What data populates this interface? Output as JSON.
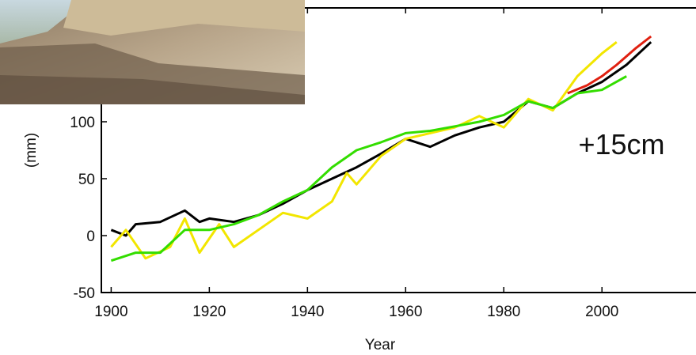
{
  "chart_data": {
    "type": "line",
    "x_label": "Year",
    "y_label": "(mm)",
    "annotation": "+15cm",
    "xlim": [
      1898,
      2019
    ],
    "ylim": [
      -50,
      200
    ],
    "xticks": [
      1900,
      1920,
      1940,
      1960,
      1980,
      2000
    ],
    "yticks": [
      -50,
      0,
      50,
      100
    ],
    "series": [
      {
        "color": "#000000",
        "x": [
          1900,
          1903,
          1905,
          1910,
          1915,
          1918,
          1920,
          1925,
          1930,
          1935,
          1940,
          1945,
          1950,
          1955,
          1960,
          1965,
          1970,
          1975,
          1980,
          1985,
          1990,
          1995,
          2000,
          2005,
          2010
        ],
        "values": [
          5,
          0,
          10,
          12,
          22,
          12,
          15,
          12,
          18,
          28,
          40,
          50,
          60,
          72,
          85,
          78,
          88,
          95,
          100,
          118,
          112,
          125,
          135,
          150,
          170
        ]
      },
      {
        "color": "#f2e600",
        "x": [
          1900,
          1903,
          1907,
          1912,
          1915,
          1918,
          1922,
          1925,
          1930,
          1935,
          1940,
          1945,
          1948,
          1950,
          1955,
          1960,
          1965,
          1970,
          1975,
          1980,
          1985,
          1990,
          1995,
          2000,
          2003
        ],
        "values": [
          -10,
          5,
          -20,
          -10,
          15,
          -15,
          10,
          -10,
          5,
          20,
          15,
          30,
          55,
          45,
          70,
          85,
          90,
          95,
          105,
          95,
          120,
          110,
          140,
          160,
          170
        ]
      },
      {
        "color": "#33dd00",
        "x": [
          1900,
          1905,
          1910,
          1915,
          1920,
          1925,
          1930,
          1935,
          1940,
          1945,
          1950,
          1955,
          1960,
          1965,
          1970,
          1975,
          1980,
          1985,
          1990,
          1995,
          2000,
          2005
        ],
        "values": [
          -22,
          -15,
          -15,
          5,
          5,
          10,
          18,
          30,
          40,
          60,
          75,
          82,
          90,
          92,
          96,
          100,
          106,
          118,
          112,
          125,
          128,
          140
        ]
      },
      {
        "color": "#e02010",
        "x": [
          1993,
          1997,
          2000,
          2003,
          2007,
          2010
        ],
        "values": [
          125,
          132,
          140,
          150,
          165,
          175
        ]
      }
    ]
  }
}
